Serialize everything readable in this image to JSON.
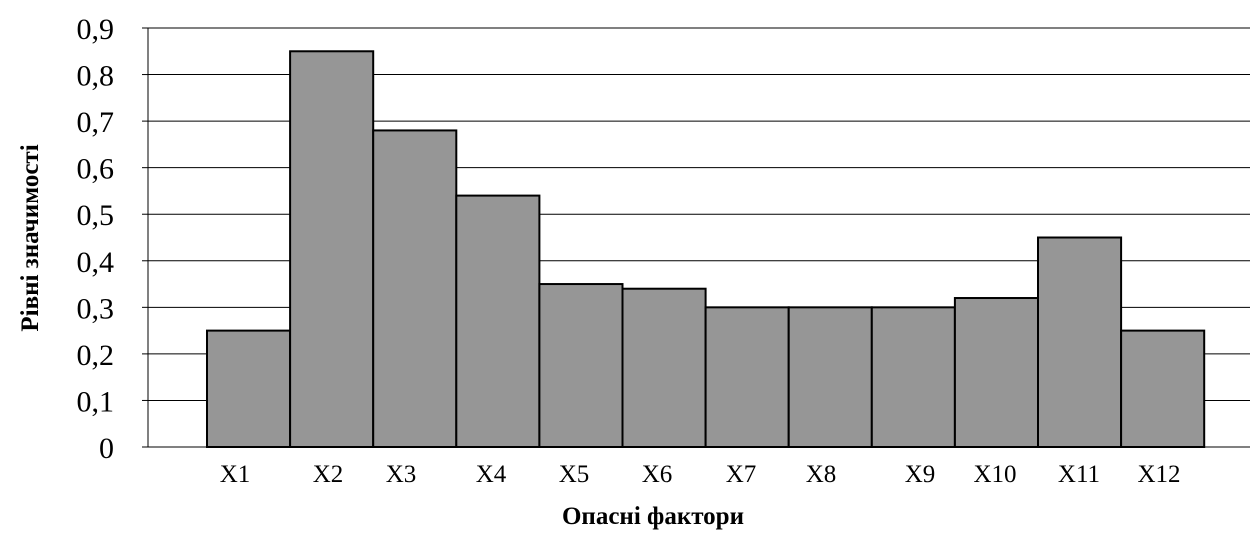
{
  "chart_data": {
    "type": "bar",
    "title": "",
    "xlabel": "Опасні фактори",
    "ylabel": "Рівні значимості",
    "categories": [
      "X1",
      "X2",
      "X3",
      "X4",
      "X5",
      "X6",
      "X7",
      "X8",
      "X9",
      "X10",
      "X11",
      "X12"
    ],
    "values": [
      0.25,
      0.85,
      0.68,
      0.54,
      0.35,
      0.34,
      0.3,
      0.3,
      0.3,
      0.32,
      0.45,
      0.25
    ],
    "ylim": [
      0,
      0.9
    ],
    "yticks": [
      "0",
      "0,1",
      "0,2",
      "0,3",
      "0,4",
      "0,5",
      "0,6",
      "0,7",
      "0,8",
      "0,9"
    ],
    "grid": true,
    "legend": "none",
    "colors": {
      "bar_fill": "#969696",
      "bar_stroke": "#000000",
      "grid": "#000000"
    }
  }
}
